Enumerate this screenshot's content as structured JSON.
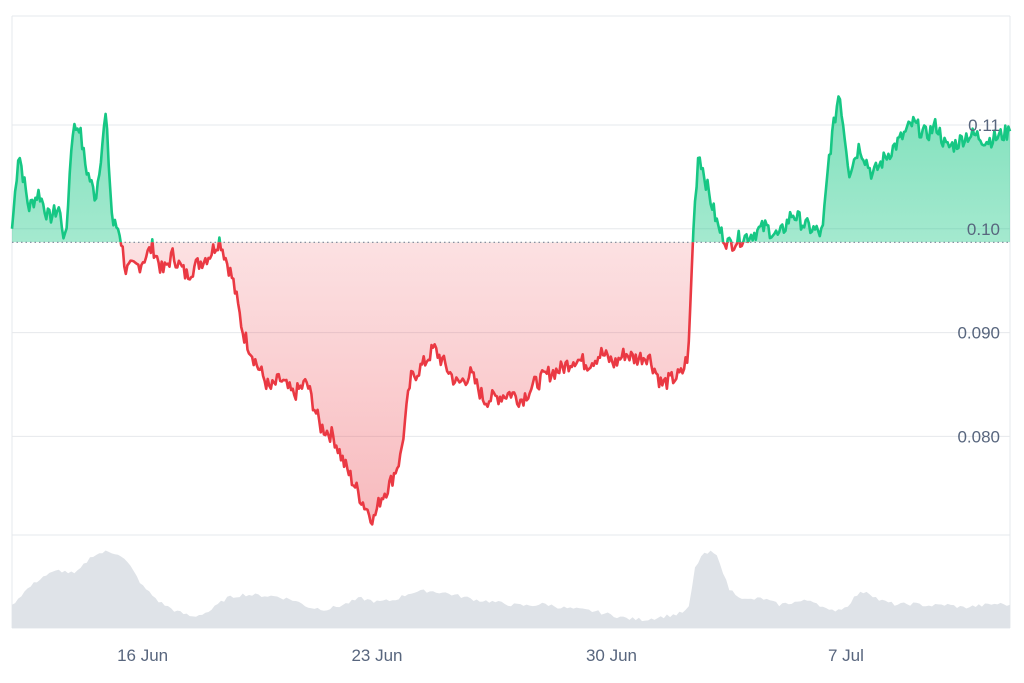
{
  "chart_data": {
    "type": "area",
    "baseline": 0.0987,
    "ylim": [
      0.0705,
      0.1205
    ],
    "y_ticks": [
      {
        "value": 0.11,
        "label": "0.11"
      },
      {
        "value": 0.1,
        "label": "0.10"
      },
      {
        "value": 0.09,
        "label": "0.090"
      },
      {
        "value": 0.08,
        "label": "0.080"
      }
    ],
    "x_ticks": [
      {
        "day": 16,
        "label": "16 Jun"
      },
      {
        "day": 23,
        "label": "23 Jun"
      },
      {
        "day": 30,
        "label": "30 Jun"
      },
      {
        "day": 37,
        "label": "7 Jul"
      }
    ],
    "x_range": [
      12.1,
      41.9
    ],
    "price": {
      "x": [
        12.1,
        12.3,
        12.6,
        12.9,
        13.2,
        13.5,
        13.7,
        13.9,
        14.1,
        14.3,
        14.6,
        14.9,
        15.1,
        15.3,
        15.5,
        15.9,
        16.3,
        16.6,
        16.9,
        17.3,
        17.6,
        18.0,
        18.3,
        18.7,
        19.0,
        19.4,
        19.8,
        20.1,
        20.5,
        20.9,
        21.3,
        21.7,
        22.0,
        22.3,
        22.6,
        22.9,
        23.1,
        23.4,
        23.7,
        24.0,
        24.4,
        24.7,
        25.1,
        25.4,
        25.8,
        26.2,
        26.6,
        27.0,
        27.3,
        27.7,
        28.1,
        28.5,
        28.9,
        29.3,
        29.7,
        30.1,
        30.4,
        30.7,
        31.1,
        31.5,
        31.8,
        32.1,
        32.3,
        32.45,
        32.6,
        32.9,
        33.2,
        33.5,
        33.8,
        34.2,
        34.6,
        35.0,
        35.4,
        35.8,
        36.1,
        36.3,
        36.5,
        36.8,
        37.1,
        37.4,
        37.8,
        38.2,
        38.6,
        39.0,
        39.4,
        39.7,
        40.0,
        40.3,
        40.6,
        40.9,
        41.2,
        41.5,
        41.9
      ],
      "y": [
        0.1,
        0.1075,
        0.102,
        0.1035,
        0.101,
        0.102,
        0.0985,
        0.1095,
        0.11,
        0.106,
        0.103,
        0.111,
        0.1005,
        0.1,
        0.096,
        0.0965,
        0.0983,
        0.0958,
        0.0975,
        0.0955,
        0.0965,
        0.0975,
        0.099,
        0.095,
        0.09,
        0.087,
        0.0845,
        0.0855,
        0.084,
        0.0852,
        0.081,
        0.08,
        0.0775,
        0.0755,
        0.0735,
        0.072,
        0.074,
        0.0755,
        0.078,
        0.0855,
        0.087,
        0.0885,
        0.0865,
        0.085,
        0.086,
        0.0835,
        0.0838,
        0.0842,
        0.0835,
        0.085,
        0.086,
        0.0865,
        0.0875,
        0.087,
        0.088,
        0.087,
        0.088,
        0.0875,
        0.0878,
        0.085,
        0.0855,
        0.086,
        0.088,
        0.1003,
        0.1075,
        0.1035,
        0.1,
        0.0985,
        0.099,
        0.0995,
        0.1002,
        0.0992,
        0.1015,
        0.1003,
        0.0998,
        0.0995,
        0.107,
        0.1133,
        0.1055,
        0.108,
        0.1052,
        0.107,
        0.1085,
        0.1102,
        0.109,
        0.11,
        0.1078,
        0.1082,
        0.109,
        0.109,
        0.1085,
        0.1088,
        0.1094
      ]
    },
    "volume": {
      "x": [
        12.1,
        12.5,
        13.0,
        13.5,
        14.0,
        14.5,
        14.9,
        15.3,
        15.6,
        16.0,
        16.5,
        17.0,
        17.5,
        18.0,
        18.5,
        19.0,
        19.5,
        20.0,
        20.5,
        21.0,
        21.5,
        22.0,
        22.5,
        23.0,
        23.5,
        24.0,
        24.5,
        25.0,
        25.5,
        26.0,
        26.5,
        27.0,
        27.5,
        28.0,
        28.5,
        29.0,
        29.5,
        30.0,
        30.5,
        31.0,
        31.5,
        32.0,
        32.3,
        32.5,
        32.7,
        33.0,
        33.2,
        33.5,
        34.0,
        34.5,
        35.0,
        35.5,
        36.0,
        36.5,
        37.0,
        37.3,
        37.6,
        38.0,
        38.5,
        39.0,
        39.5,
        40.0,
        40.5,
        41.0,
        41.5,
        41.9
      ],
      "y": [
        0.25,
        0.4,
        0.55,
        0.62,
        0.58,
        0.78,
        0.82,
        0.8,
        0.68,
        0.45,
        0.28,
        0.18,
        0.12,
        0.18,
        0.32,
        0.36,
        0.35,
        0.34,
        0.3,
        0.22,
        0.2,
        0.25,
        0.32,
        0.28,
        0.3,
        0.38,
        0.4,
        0.38,
        0.34,
        0.3,
        0.28,
        0.25,
        0.24,
        0.26,
        0.22,
        0.2,
        0.18,
        0.14,
        0.1,
        0.09,
        0.12,
        0.15,
        0.2,
        0.65,
        0.78,
        0.82,
        0.75,
        0.42,
        0.3,
        0.32,
        0.25,
        0.28,
        0.3,
        0.18,
        0.22,
        0.35,
        0.4,
        0.3,
        0.25,
        0.26,
        0.24,
        0.25,
        0.22,
        0.24,
        0.26,
        0.25
      ]
    },
    "colors": {
      "up_line": "#16c784",
      "down_line": "#ea3943",
      "up_fill": "#16c784",
      "down_fill": "#ea3943",
      "volume_fill": "#dfe3e8",
      "grid": "#e6e8ec",
      "baseline": "#7a8597",
      "tick_text": "#58667e"
    }
  }
}
